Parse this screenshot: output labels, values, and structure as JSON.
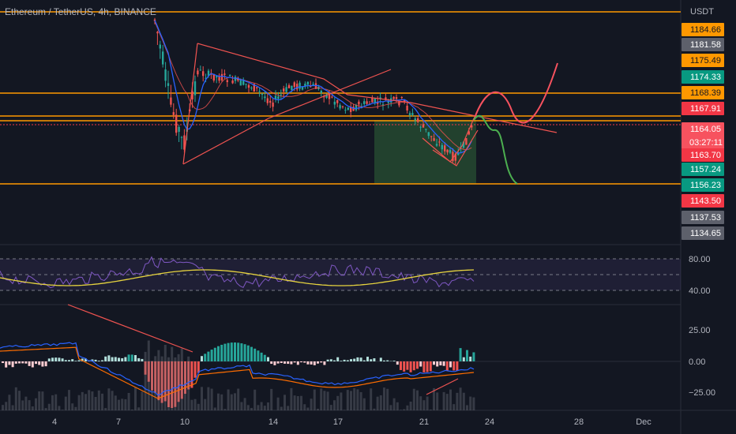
{
  "header": {
    "title": "Ethereum / TetherUS, 4h, BINANCE",
    "currency": "USDT"
  },
  "price_badges": [
    {
      "value": "1184.66",
      "bg": "#ff9800",
      "fg": "#131722"
    },
    {
      "value": "1181.58",
      "bg": "#5d606b",
      "fg": "#ffffff"
    },
    {
      "value": "1175.49",
      "bg": "#ff9800",
      "fg": "#131722"
    },
    {
      "value": "1174.33",
      "bg": "#089981",
      "fg": "#ffffff"
    },
    {
      "value": "1168.39",
      "bg": "#ff9800",
      "fg": "#131722"
    },
    {
      "value": "1167.91",
      "bg": "#f23645",
      "fg": "#ffffff"
    },
    {
      "value": "1164.05",
      "timer": "03:27:11",
      "bg": "#f7525f",
      "fg": "#ffffff"
    },
    {
      "value": "1163.70",
      "bg": "#f23645",
      "fg": "#ffffff"
    },
    {
      "value": "1157.24",
      "bg": "#089981",
      "fg": "#ffffff"
    },
    {
      "value": "1156.23",
      "bg": "#089981",
      "fg": "#ffffff"
    },
    {
      "value": "1143.50",
      "bg": "#f23645",
      "fg": "#ffffff"
    },
    {
      "value": "1137.53",
      "bg": "#5d606b",
      "fg": "#ffffff"
    },
    {
      "value": "1134.65",
      "bg": "#5d606b",
      "fg": "#ffffff"
    }
  ],
  "rsi_axis": [
    "80.00",
    "40.00"
  ],
  "macd_axis": [
    "25.00",
    "0.00",
    "−25.00"
  ],
  "x_axis": [
    "4",
    "7",
    "10",
    "14",
    "17",
    "21",
    "24",
    "28",
    "Dec"
  ],
  "colors": {
    "up": "#26a69a",
    "down": "#ef5350",
    "orange": "#ff9800",
    "ma_blue": "#2962ff",
    "rsi": "#7e57c2",
    "rsi_ma": "#e6d33f",
    "forecast_red": "#f7525f",
    "forecast_green": "#4caf50"
  }
}
